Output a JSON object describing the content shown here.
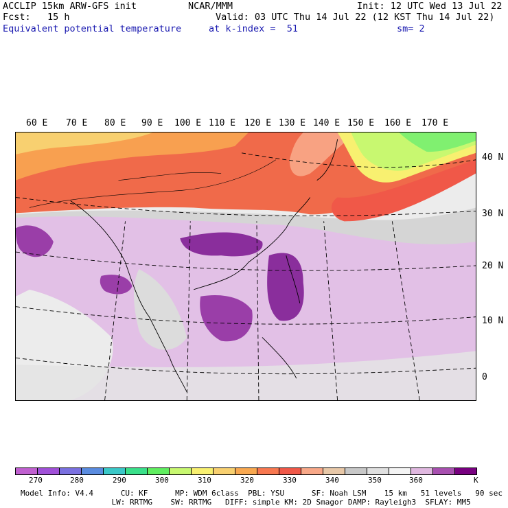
{
  "header": {
    "line1_left": "ACCLIP 15km ARW-GFS init",
    "line1_center": "NCAR/MMM",
    "line1_right": "Init: 12 UTC Wed 13 Jul 22",
    "line2_left": "Fcst:   15 h",
    "line2_right": "Valid: 03 UTC Thu 14 Jul 22 (12 KST Thu 14 Jul 22)",
    "field_name": "Equivalent potential temperature",
    "level": "at k-index =  51",
    "smoothing": "sm= 2"
  },
  "map": {
    "lon_labels": [
      "60 E",
      "70 E",
      "80 E",
      "90 E",
      "100 E",
      "110 E",
      "120 E",
      "130 E",
      "140 E",
      "150 E",
      "160 E",
      "170 E"
    ],
    "lat_labels": [
      "40 N",
      "30 N",
      "20 N",
      "10 N",
      "0"
    ]
  },
  "colorbar": {
    "colors": [
      "#c060d0",
      "#a050d8",
      "#7a70e0",
      "#5a8ce0",
      "#3ac8c8",
      "#3ae08a",
      "#60ee60",
      "#c8f870",
      "#f8f070",
      "#f8d070",
      "#f8a850",
      "#f87850",
      "#f05848",
      "#f8a888",
      "#e8c8a8",
      "#c8c8c8",
      "#e0e0e0",
      "#f4f4f4",
      "#e0b8e0",
      "#a850b0",
      "#780080"
    ],
    "tick_labels": [
      "270",
      "280",
      "290",
      "300",
      "310",
      "320",
      "330",
      "340",
      "350",
      "360"
    ],
    "unit": "K"
  },
  "footer": {
    "line1": "Model Info: V4.4      CU: KF      MP: WDM 6class  PBL: YSU      SF: Noah LSM    15 km   51 levels   90 sec",
    "line2": "                    LW: RRTMG    SW: RRTMG   DIFF: simple KM: 2D Smagor DAMP: Rayleigh3  SFLAY: MM5"
  }
}
